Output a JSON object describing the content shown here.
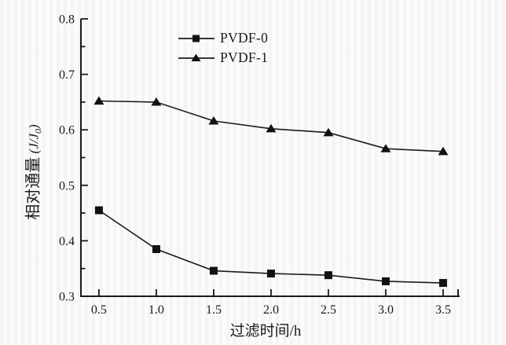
{
  "figure": {
    "ink_color": "#1b1b1b",
    "background_color": "#fbfbf9"
  },
  "chart_data": {
    "type": "line",
    "title": "",
    "xlabel": "过滤时间/h",
    "ylabel": "相对通量 (J/J0)",
    "ylabel_parts": {
      "cn": "相对通量",
      "unit_open": " (",
      "j1": "J",
      "slash": "/",
      "j2": "J",
      "subscript": "0",
      "unit_close": ")"
    },
    "x": [
      0.5,
      1.0,
      1.5,
      2.0,
      2.5,
      3.0,
      3.5
    ],
    "series": [
      {
        "name": "PVDF-0",
        "marker": "square",
        "values": [
          0.455,
          0.385,
          0.346,
          0.341,
          0.338,
          0.327,
          0.324
        ]
      },
      {
        "name": "PVDF-1",
        "marker": "triangle",
        "values": [
          0.652,
          0.65,
          0.616,
          0.602,
          0.595,
          0.566,
          0.561
        ]
      }
    ],
    "xlim": [
      0.343,
      3.644
    ],
    "ylim": [
      0.3,
      0.8
    ],
    "x_major_ticks": [
      0.5,
      1.0,
      1.5,
      2.0,
      2.5,
      3.0,
      3.5
    ],
    "y_major_ticks": [
      0.3,
      0.4,
      0.5,
      0.6,
      0.7,
      0.8
    ],
    "y_minor_ticks": [
      0.35,
      0.45,
      0.55,
      0.65,
      0.75
    ],
    "grid": false,
    "legend_position": "top-center-inside",
    "line_color": "#1b1b1b",
    "marker_color": "#111111"
  }
}
